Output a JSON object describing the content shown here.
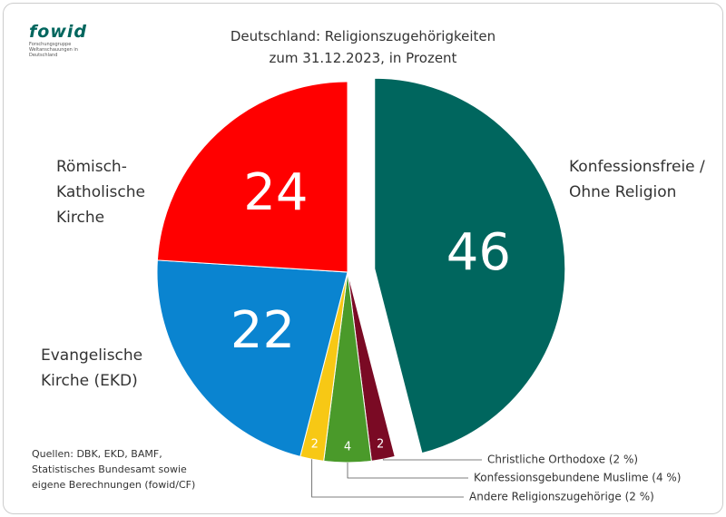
{
  "logo": {
    "name": "fowid",
    "subtitle": "Forschungsgruppe Weltanschauungen in Deutschland"
  },
  "chart_data": {
    "type": "pie",
    "title": "Deutschland: Religionszugehörigkeiten zum 31.12.2023, in Prozent",
    "categories": [
      "Konfessionsfreie / Ohne Religion",
      "Christliche Orthodoxe (2 %)",
      "Konfessionsgebundene Muslime (4 %)",
      "Andere Religionszugehörige (2 %)",
      "Evangelische Kirche (EKD)",
      "Römisch-Katholische Kirche"
    ],
    "values": [
      46,
      2,
      4,
      2,
      22,
      24
    ],
    "colors": [
      "#00665e",
      "#7a0a24",
      "#4a9a2a",
      "#f7c815",
      "#0a84d0",
      "#ff0000"
    ],
    "exploded": [
      0
    ],
    "source": "Quellen: DBK, EKD, BAMF, Statistisches Bundesamt sowie eigene Berechnungen (fowid/CF)"
  }
}
